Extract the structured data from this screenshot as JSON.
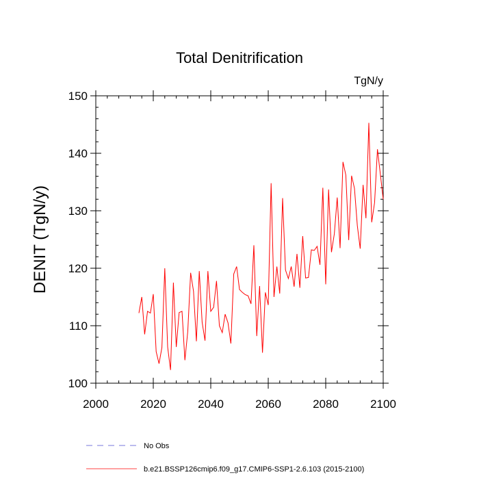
{
  "chart_data": {
    "type": "line",
    "title": "Total Denitrification",
    "units": "TgN/y",
    "ylabel": "DENIT  (TgN/y)",
    "xlabel": "",
    "xlim": [
      2000,
      2100
    ],
    "ylim": [
      100,
      150
    ],
    "x_ticks": [
      2000,
      2020,
      2040,
      2060,
      2080,
      2100
    ],
    "y_ticks": [
      100,
      110,
      120,
      130,
      140,
      150
    ],
    "grid": false,
    "legend": [
      {
        "label": "No Obs",
        "color": "#7777dd",
        "style": "dashed"
      },
      {
        "label": "b.e21.BSSP126cmip6.f09_g17.CMIP6-SSP1-2.6.103 (2015-2100)",
        "color": "#ff0000",
        "style": "solid"
      }
    ],
    "series": [
      {
        "name": "b.e21.BSSP126cmip6.f09_g17.CMIP6-SSP1-2.6.103 (2015-2100)",
        "color": "#ff0000",
        "x": [
          2015,
          2016,
          2017,
          2018,
          2019,
          2020,
          2021,
          2022,
          2023,
          2024,
          2025,
          2026,
          2027,
          2028,
          2029,
          2030,
          2031,
          2032,
          2033,
          2034,
          2035,
          2036,
          2037,
          2038,
          2039,
          2040,
          2041,
          2042,
          2043,
          2044,
          2045,
          2046,
          2047,
          2048,
          2049,
          2050,
          2051,
          2052,
          2053,
          2054,
          2055,
          2056,
          2057,
          2058,
          2059,
          2060,
          2061,
          2062,
          2063,
          2064,
          2065,
          2066,
          2067,
          2068,
          2069,
          2070,
          2071,
          2072,
          2073,
          2074,
          2075,
          2076,
          2077,
          2078,
          2079,
          2080,
          2081,
          2082,
          2083,
          2084,
          2085,
          2086,
          2087,
          2088,
          2089,
          2090,
          2091,
          2092,
          2093,
          2094,
          2095,
          2096,
          2097,
          2098,
          2099,
          2100
        ],
        "values": [
          112.2,
          115.0,
          108.5,
          112.5,
          112.2,
          115.5,
          105.5,
          103.4,
          106.2,
          120.0,
          106.3,
          102.3,
          117.5,
          106.3,
          112.3,
          112.5,
          104.0,
          109.0,
          119.2,
          116.0,
          107.3,
          119.5,
          110.6,
          107.4,
          119.5,
          112.5,
          113.2,
          117.8,
          110.0,
          108.8,
          112.0,
          110.5,
          106.9,
          119.0,
          120.3,
          116.3,
          115.8,
          115.4,
          115.2,
          113.8,
          124.0,
          108.2,
          116.9,
          105.3,
          115.8,
          113.6,
          134.8,
          115.0,
          120.3,
          115.6,
          132.2,
          119.7,
          118.2,
          120.3,
          116.8,
          122.5,
          116.6,
          125.6,
          118.3,
          118.4,
          123.2,
          123.1,
          123.8,
          120.6,
          134.0,
          117.2,
          133.7,
          122.8,
          126.0,
          132.3,
          123.5,
          138.5,
          136.2,
          124.9,
          136.1,
          133.9,
          127.4,
          123.4,
          134.5,
          128.7,
          145.3,
          128.0,
          131.4,
          140.7,
          136.4,
          132.0
        ]
      }
    ]
  }
}
